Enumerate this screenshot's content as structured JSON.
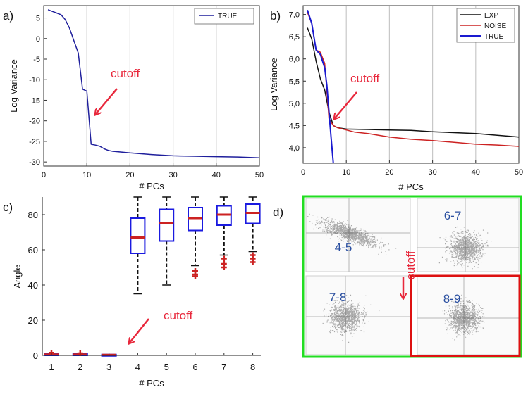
{
  "chart_data": [
    {
      "panel_label": "a)",
      "type": "line",
      "xlabel": "# PCs",
      "ylabel": "Log Variance",
      "xlim": [
        0,
        50
      ],
      "ylim": [
        -31,
        8
      ],
      "xticks": [
        0,
        10,
        20,
        30,
        40,
        50
      ],
      "yticks": [
        5,
        0,
        -5,
        -10,
        -15,
        -20,
        -25,
        -30
      ],
      "grid": "vertical",
      "legend_position": "top-right",
      "series": [
        {
          "name": "TRUE",
          "color": "#1f1f9c",
          "x": [
            1,
            2,
            3,
            4,
            5,
            6,
            7,
            8,
            9,
            10,
            11,
            12,
            13,
            14,
            15,
            16,
            18,
            20,
            25,
            30,
            35,
            40,
            45,
            50
          ],
          "y": [
            7.0,
            6.6,
            6.2,
            5.8,
            4.6,
            2.5,
            -0.5,
            -3.5,
            -12.3,
            -12.8,
            -25.7,
            -25.9,
            -26.2,
            -26.8,
            -27.2,
            -27.4,
            -27.6,
            -27.8,
            -28.2,
            -28.5,
            -28.6,
            -28.7,
            -28.8,
            -29.0
          ]
        }
      ],
      "annotation": {
        "text": "cutoff",
        "color": "#e8283c",
        "points_to": [
          11,
          -20.5
        ]
      }
    },
    {
      "panel_label": "b)",
      "type": "line",
      "xlabel": "# PCs",
      "ylabel": "Log Variance",
      "xlim": [
        0,
        50
      ],
      "ylim": [
        3.65,
        7.2
      ],
      "xticks": [
        0,
        10,
        20,
        30,
        40,
        50
      ],
      "yticks": [
        4.0,
        4.5,
        5.0,
        5.5,
        6.0,
        6.5,
        7.0
      ],
      "ytick_labels": [
        "4,0",
        "4,5",
        "5,0",
        "5,5",
        "6,0",
        "6,5",
        "7,0"
      ],
      "grid": "vertical",
      "legend_position": "top-right",
      "series": [
        {
          "name": "EXP",
          "color": "#111111",
          "x": [
            1,
            2,
            3,
            4,
            5,
            6,
            7,
            8,
            10,
            15,
            20,
            25,
            30,
            35,
            40,
            45,
            50
          ],
          "y": [
            6.7,
            6.45,
            5.95,
            5.55,
            5.3,
            4.8,
            4.5,
            4.45,
            4.42,
            4.41,
            4.4,
            4.39,
            4.36,
            4.34,
            4.32,
            4.28,
            4.24
          ]
        },
        {
          "name": "NOISE",
          "color": "#cc2222",
          "x": [
            1,
            2,
            3,
            4,
            5,
            6,
            7,
            8,
            10,
            12,
            15,
            20,
            25,
            30,
            35,
            40,
            45,
            50
          ],
          "y": [
            7.05,
            6.8,
            6.2,
            6.15,
            5.9,
            4.65,
            4.5,
            4.45,
            4.4,
            4.35,
            4.32,
            4.24,
            4.19,
            4.16,
            4.12,
            4.08,
            4.06,
            4.03
          ]
        },
        {
          "name": "TRUE",
          "color": "#1a1ad0",
          "x": [
            1,
            2,
            3,
            4,
            5,
            5.5,
            6,
            6.5,
            7
          ],
          "y": [
            7.1,
            6.8,
            6.2,
            6.1,
            5.8,
            5.4,
            4.8,
            4.2,
            3.65
          ]
        }
      ],
      "annotation": {
        "text": "cutoff",
        "color": "#e8283c",
        "points_to": [
          6,
          4.62
        ]
      }
    },
    {
      "panel_label": "c)",
      "type": "box",
      "xlabel": "# PCs",
      "ylabel": "Angle",
      "categories": [
        "1",
        "2",
        "3",
        "4",
        "5",
        "6",
        "7",
        "8"
      ],
      "ylim": [
        0,
        90
      ],
      "yticks": [
        0,
        20,
        40,
        60,
        80
      ],
      "boxes": [
        {
          "median": 0.5,
          "q1": 0,
          "q3": 1,
          "lower_whisker": 0,
          "upper_whisker": 1,
          "outliers": [
            1.5
          ]
        },
        {
          "median": 0.5,
          "q1": 0,
          "q3": 1,
          "lower_whisker": 0,
          "upper_whisker": 1,
          "outliers": [
            1.2
          ]
        },
        {
          "median": 0.3,
          "q1": 0,
          "q3": 0.5,
          "lower_whisker": 0,
          "upper_whisker": 0.5,
          "outliers": []
        },
        {
          "median": 67,
          "q1": 58,
          "q3": 78,
          "lower_whisker": 35,
          "upper_whisker": 90,
          "outliers": []
        },
        {
          "median": 75,
          "q1": 65,
          "q3": 83,
          "lower_whisker": 40,
          "upper_whisker": 90,
          "outliers": []
        },
        {
          "median": 78,
          "q1": 71,
          "q3": 84,
          "lower_whisker": 51,
          "upper_whisker": 90,
          "outliers": [
            48,
            46,
            45
          ]
        },
        {
          "median": 80,
          "q1": 74,
          "q3": 85,
          "lower_whisker": 57,
          "upper_whisker": 90,
          "outliers": [
            55,
            52,
            50
          ]
        },
        {
          "median": 81,
          "q1": 75,
          "q3": 86,
          "lower_whisker": 59,
          "upper_whisker": 90,
          "outliers": [
            57,
            55,
            53
          ]
        }
      ],
      "box_color": "#1a1ae0",
      "median_color": "#cc2222",
      "annotation": {
        "text": "cutoff",
        "color": "#e8283c",
        "points_to": [
          3.5,
          5
        ]
      }
    },
    {
      "panel_label": "d)",
      "type": "scatter",
      "panels": [
        {
          "label": "4-5",
          "cloud": "elongated-diagonal",
          "group": "green"
        },
        {
          "label": "6-7",
          "cloud": "round",
          "group": "green"
        },
        {
          "label": "7-8",
          "cloud": "round",
          "group": "green"
        },
        {
          "label": "8-9",
          "cloud": "round",
          "group": "red"
        }
      ],
      "label_color": "#2a4fa0",
      "green_frame_color": "#22dd22",
      "red_frame_color": "#dd1111",
      "annotation": {
        "text": "cutoff",
        "color": "#e8283c",
        "orientation": "vertical"
      }
    }
  ]
}
